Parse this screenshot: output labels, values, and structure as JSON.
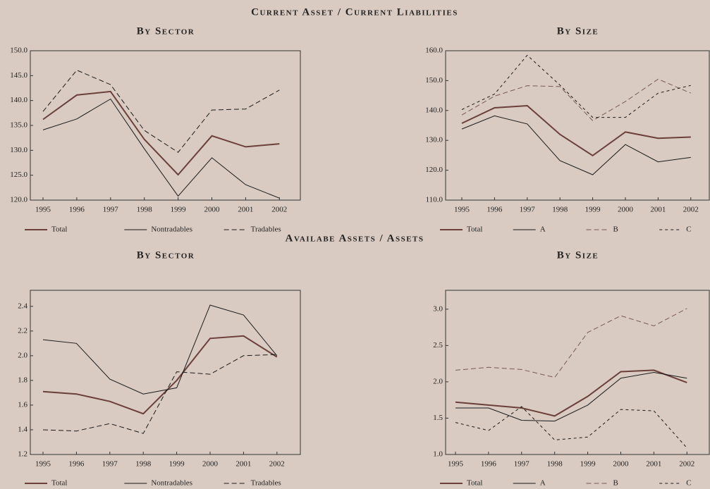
{
  "headings": [
    "Current Asset / Current Liabilities",
    "Availabe Assets / Assets"
  ],
  "chart_data": [
    {
      "type": "line",
      "title": "By Sector",
      "categories": [
        "1995",
        "1996",
        "1997",
        "1998",
        "1999",
        "2000",
        "2001",
        "2002"
      ],
      "ylim": [
        120,
        150
      ],
      "yticks": [
        {
          "value": 120,
          "label": "120.0"
        },
        {
          "value": 125,
          "label": "125.0"
        },
        {
          "value": 130,
          "label": "130.0"
        },
        {
          "value": 135,
          "label": "135.0"
        },
        {
          "value": 140,
          "label": "140.0"
        },
        {
          "value": 145,
          "label": "145.0"
        },
        {
          "value": 150,
          "label": "150.0"
        }
      ],
      "series": [
        {
          "name": "Total",
          "color": "#6b3f3a",
          "dash": "solid",
          "values": [
            136.2,
            141.1,
            141.8,
            132.2,
            125.1,
            132.9,
            130.7,
            131.3
          ]
        },
        {
          "name": "Nontradables",
          "color": "#1a1a1a",
          "dash": "solid",
          "values": [
            134.1,
            136.3,
            140.3,
            130.3,
            120.8,
            128.5,
            123.1,
            120.4
          ]
        },
        {
          "name": "Tradables",
          "color": "#1a1a1a",
          "dash": "long",
          "values": [
            137.8,
            146.1,
            143.2,
            134.0,
            129.6,
            138.1,
            138.3,
            142.1
          ]
        }
      ]
    },
    {
      "type": "line",
      "title": "By Size",
      "categories": [
        "1995",
        "1996",
        "1997",
        "1998",
        "1999",
        "2000",
        "2001",
        "2002"
      ],
      "ylim": [
        110,
        160
      ],
      "yticks": [
        {
          "value": 110,
          "label": "110.0"
        },
        {
          "value": 120,
          "label": "120.0"
        },
        {
          "value": 130,
          "label": "130.0"
        },
        {
          "value": 140,
          "label": "140.0"
        },
        {
          "value": 150,
          "label": "150.0"
        },
        {
          "value": 160,
          "label": "160.0"
        }
      ],
      "series": [
        {
          "name": "Total",
          "color": "#6b3f3a",
          "dash": "solid",
          "values": [
            135.7,
            140.9,
            141.6,
            132.0,
            124.9,
            132.8,
            130.7,
            131.1
          ]
        },
        {
          "name": "A",
          "color": "#1a1a1a",
          "dash": "solid",
          "values": [
            133.8,
            138.2,
            135.5,
            123.2,
            118.5,
            128.6,
            122.8,
            124.3
          ]
        },
        {
          "name": "B",
          "color": "#7a5a52",
          "dash": "long",
          "values": [
            138.5,
            144.8,
            148.3,
            148.0,
            136.6,
            143.0,
            150.5,
            145.8
          ]
        },
        {
          "name": "C",
          "color": "#1a1a1a",
          "dash": "short",
          "values": [
            140.3,
            145.5,
            158.5,
            148.5,
            137.7,
            137.7,
            145.8,
            148.4
          ]
        }
      ]
    },
    {
      "type": "line",
      "title": "By Sector",
      "categories": [
        "1995",
        "1996",
        "1997",
        "1998",
        "1999",
        "2000",
        "2001",
        "2002"
      ],
      "ylim": [
        1.2,
        2.53
      ],
      "yticks": [
        1.2,
        1.4,
        1.6,
        1.8,
        {
          "value": 2,
          "label": "2.0"
        },
        2.2,
        2.4
      ],
      "series": [
        {
          "name": "Total",
          "color": "#6b3f3a",
          "dash": "solid",
          "values": [
            1.71,
            1.69,
            1.63,
            1.53,
            1.8,
            2.14,
            2.16,
            1.99
          ]
        },
        {
          "name": "Nontradables",
          "color": "#1a1a1a",
          "dash": "solid",
          "values": [
            2.13,
            2.1,
            1.81,
            1.69,
            1.74,
            2.41,
            2.33,
            2.0
          ]
        },
        {
          "name": "Tradables",
          "color": "#1a1a1a",
          "dash": "long",
          "values": [
            1.4,
            1.39,
            1.45,
            1.37,
            1.87,
            1.85,
            2.0,
            2.01
          ]
        }
      ]
    },
    {
      "type": "line",
      "title": "By Size",
      "categories": [
        "1995",
        "1996",
        "1997",
        "1998",
        "1999",
        "2000",
        "2001",
        "2002"
      ],
      "ylim": [
        1.0,
        3.26
      ],
      "yticks": [
        {
          "value": 1,
          "label": "1.0"
        },
        1.5,
        {
          "value": 2,
          "label": "2.0"
        },
        2.5,
        {
          "value": 3,
          "label": "3.0"
        }
      ],
      "series": [
        {
          "name": "Total",
          "color": "#6b3f3a",
          "dash": "solid",
          "values": [
            1.72,
            1.68,
            1.64,
            1.53,
            1.8,
            2.14,
            2.16,
            1.99
          ]
        },
        {
          "name": "A",
          "color": "#1a1a1a",
          "dash": "solid",
          "values": [
            1.64,
            1.64,
            1.47,
            1.46,
            1.68,
            2.05,
            2.13,
            2.05
          ]
        },
        {
          "name": "B",
          "color": "#7a5a52",
          "dash": "long",
          "values": [
            2.16,
            2.2,
            2.17,
            2.06,
            2.68,
            2.91,
            2.77,
            3.01
          ]
        },
        {
          "name": "C",
          "color": "#1a1a1a",
          "dash": "short",
          "values": [
            1.44,
            1.33,
            1.66,
            1.2,
            1.24,
            1.62,
            1.6,
            1.09
          ]
        }
      ]
    }
  ]
}
